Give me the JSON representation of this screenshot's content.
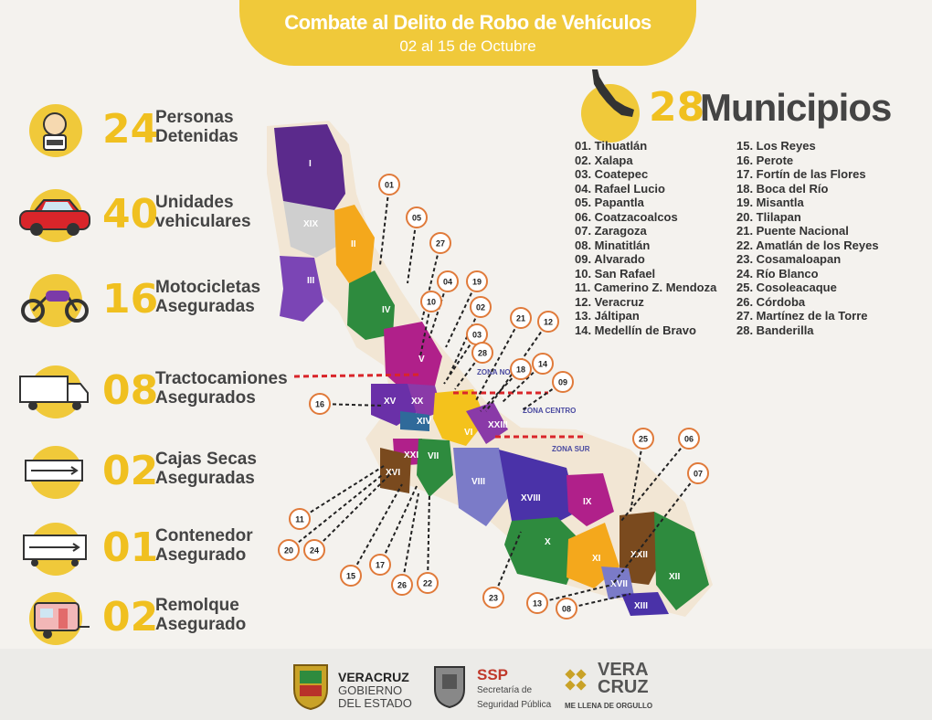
{
  "header": {
    "title": "Combate al Delito de Robo de Vehículos",
    "subtitle": "02 al 15 de Octubre"
  },
  "stats": [
    {
      "value": "24",
      "line1": "Personas",
      "line2": "Detenidas",
      "icon": "detained-person-icon"
    },
    {
      "value": "40",
      "line1": "Unidades",
      "line2": "vehiculares",
      "icon": "car-icon"
    },
    {
      "value": "16",
      "line1": "Motocicletas",
      "line2": "Aseguradas",
      "icon": "motorcycle-icon"
    },
    {
      "value": "08",
      "line1": "Tractocamiones",
      "line2": "Asegurados",
      "icon": "truck-icon"
    },
    {
      "value": "02",
      "line1": "Cajas Secas",
      "line2": "Aseguradas",
      "icon": "dry-box-icon"
    },
    {
      "value": "01",
      "line1": "Contenedor",
      "line2": "Asegurado",
      "icon": "container-icon"
    },
    {
      "value": "02",
      "line1": "Remolque",
      "line2": "Asegurado",
      "icon": "trailer-icon"
    }
  ],
  "municipios": {
    "count": "28",
    "label": "Municipios",
    "col1": [
      "01. Tihuatlán",
      "02. Xalapa",
      "03. Coatepec",
      "04. Rafael Lucio",
      "05. Papantla",
      "06. Coatzacoalcos",
      "07. Zaragoza",
      "08. Minatitlán",
      "09. Alvarado",
      "10.  San Rafael",
      "11. Camerino Z. Mendoza",
      "12. Veracruz",
      "13. Jáltipan",
      "14. Medellín de Bravo"
    ],
    "col2": [
      "15. Los Reyes",
      "16. Perote",
      "17. Fortín de las Flores",
      "18. Boca del Río",
      "19. Misantla",
      "20. Tlilapan",
      "21. Puente Nacional",
      "22. Amatlán de los Reyes",
      "23. Cosamaloapan",
      "24. Río Blanco",
      "25. Cosoleacaque",
      "26. Córdoba",
      "27. Martínez de la Torre",
      "28. Banderilla"
    ]
  },
  "map": {
    "zones": [
      "ZONA NORTE",
      "ZONA CENTRO",
      "ZONA SUR"
    ],
    "regions": [
      "I",
      "II",
      "III",
      "IV",
      "V",
      "VI",
      "VII",
      "VIII",
      "IX",
      "X",
      "XI",
      "XII",
      "XIII",
      "XIV",
      "XV",
      "XVI",
      "XVII",
      "XVIII",
      "XIX",
      "XX",
      "XXI",
      "XXII",
      "XXIII"
    ],
    "markers": [
      "01",
      "05",
      "27",
      "04",
      "19",
      "10",
      "02",
      "03",
      "28",
      "21",
      "12",
      "18",
      "14",
      "09",
      "16",
      "25",
      "06",
      "07",
      "11",
      "20",
      "24",
      "15",
      "17",
      "26",
      "22",
      "23",
      "13",
      "08"
    ]
  },
  "footer": {
    "gov_line1": "VERACRUZ",
    "gov_line2": "GOBIERNO",
    "gov_line3": "DEL ESTADO",
    "ssp_title": "SSP",
    "ssp_line1": "Secretaría de",
    "ssp_line2": "Seguridad Pública",
    "brand_line1": "VERA",
    "brand_line2": "CRUZ",
    "brand_tag": "ME LLENA DE ORGULLO"
  },
  "colors": {
    "accent": "#f0c93a",
    "purple": "#5b2a8c",
    "green": "#2e8b3e",
    "orange": "#f4a81c",
    "magenta": "#b0208a",
    "brown": "#7a4a1e",
    "red_dash": "#d9252a"
  }
}
